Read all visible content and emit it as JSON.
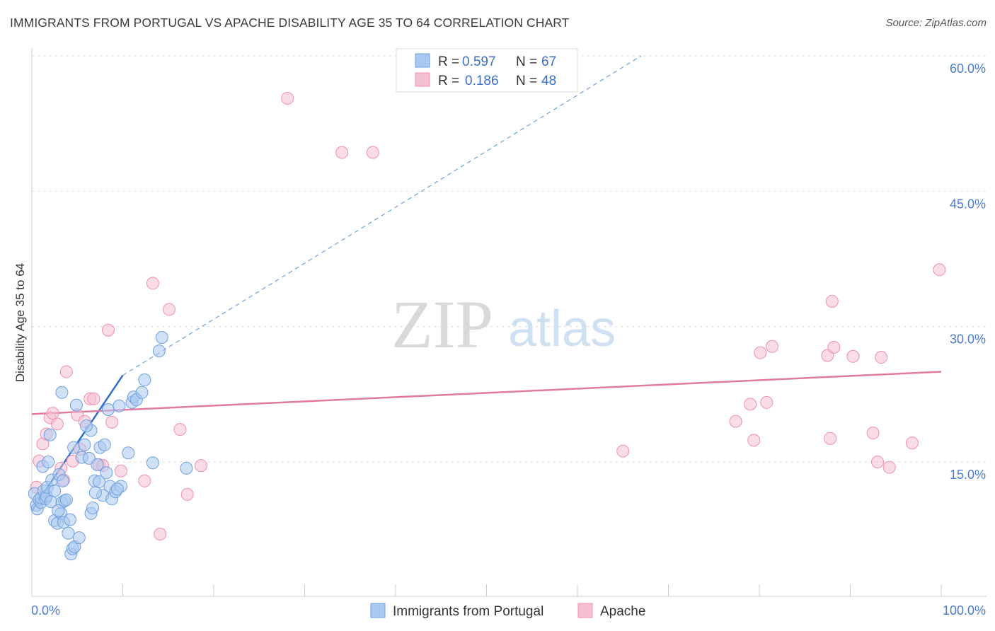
{
  "title": "IMMIGRANTS FROM PORTUGAL VS APACHE DISABILITY AGE 35 TO 64 CORRELATION CHART",
  "source": "Source: ZipAtlas.com",
  "watermark": {
    "zip": "ZIP",
    "atlas": "atlas"
  },
  "colors": {
    "blue_fill": "#a9c8f0",
    "blue_stroke": "#6f9fdc",
    "blue_line": "#2f6fcc",
    "pink_fill": "#f6bfd1",
    "pink_stroke": "#ec90b0",
    "pink_line": "#e07aa0",
    "grid": "#dddddd",
    "tick_text": "#4a7bd0"
  },
  "legend": {
    "rows": [
      {
        "r_label": "R =",
        "r_value": "0.597",
        "n_label": "N =",
        "n_value": "67"
      },
      {
        "r_label": "R =",
        "r_value": "0.186",
        "n_label": "N =",
        "n_value": "48"
      }
    ]
  },
  "chart_data": {
    "type": "scatter",
    "title": "IMMIGRANTS FROM PORTUGAL VS APACHE DISABILITY AGE 35 TO 64 CORRELATION CHART",
    "xlabel": "",
    "ylabel": "Disability Age 35 to 64",
    "xlim": [
      0,
      100
    ],
    "ylim": [
      0,
      63
    ],
    "x_tick_labels": [
      "0.0%",
      "100.0%"
    ],
    "y_ticks": [
      15,
      30,
      45,
      60
    ],
    "y_tick_labels": [
      "15.0%",
      "30.0%",
      "45.0%",
      "60.0%"
    ],
    "grid": true,
    "legend_position": "top-center",
    "series": [
      {
        "name": "Immigrants from Portugal",
        "color": "#a9c8f0",
        "trend": {
          "x0": 0,
          "y0": 9.6,
          "x1": 10,
          "y1": 24.6,
          "dashed_to_x": 67,
          "dashed_to_y": 60
        },
        "points": [
          [
            0.3,
            11.5
          ],
          [
            0.5,
            10.2
          ],
          [
            0.6,
            9.8
          ],
          [
            0.8,
            10.8
          ],
          [
            1.0,
            10.5
          ],
          [
            1.0,
            11.0
          ],
          [
            1.2,
            14.5
          ],
          [
            1.3,
            11.8
          ],
          [
            1.5,
            10.9
          ],
          [
            1.6,
            11.2
          ],
          [
            1.7,
            12.2
          ],
          [
            1.8,
            15.0
          ],
          [
            2.0,
            18.0
          ],
          [
            2.1,
            10.6
          ],
          [
            2.2,
            13.0
          ],
          [
            2.5,
            11.8
          ],
          [
            2.5,
            8.5
          ],
          [
            2.8,
            8.2
          ],
          [
            3.0,
            13.6
          ],
          [
            3.2,
            9.3
          ],
          [
            3.3,
            10.5
          ],
          [
            3.4,
            12.9
          ],
          [
            3.5,
            8.3
          ],
          [
            3.6,
            10.7
          ],
          [
            3.8,
            10.8
          ],
          [
            4.0,
            7.1
          ],
          [
            3.3,
            22.7
          ],
          [
            4.3,
            4.8
          ],
          [
            4.5,
            5.4
          ],
          [
            4.6,
            16.6
          ],
          [
            4.7,
            5.6
          ],
          [
            4.9,
            21.3
          ],
          [
            5.2,
            6.6
          ],
          [
            5.5,
            15.5
          ],
          [
            6.3,
            15.4
          ],
          [
            6.5,
            18.5
          ],
          [
            6.5,
            9.3
          ],
          [
            6.7,
            9.9
          ],
          [
            6.9,
            12.9
          ],
          [
            7.2,
            14.7
          ],
          [
            7.4,
            12.8
          ],
          [
            7.5,
            16.6
          ],
          [
            7.8,
            11.3
          ],
          [
            8.0,
            16.9
          ],
          [
            8.2,
            13.8
          ],
          [
            8.4,
            20.8
          ],
          [
            8.6,
            12.3
          ],
          [
            8.8,
            10.9
          ],
          [
            9.2,
            11.7
          ],
          [
            9.6,
            21.2
          ],
          [
            9.8,
            12.3
          ],
          [
            10.6,
            16.0
          ],
          [
            11.0,
            21.6
          ],
          [
            11.2,
            22.2
          ],
          [
            11.5,
            21.9
          ],
          [
            12.1,
            22.7
          ],
          [
            12.4,
            24.1
          ],
          [
            13.3,
            14.9
          ],
          [
            14.0,
            27.3
          ],
          [
            14.3,
            28.8
          ],
          [
            17.0,
            14.3
          ],
          [
            6.0,
            19.0
          ],
          [
            4.2,
            8.6
          ],
          [
            2.9,
            9.6
          ],
          [
            7.0,
            11.6
          ],
          [
            9.4,
            12.0
          ],
          [
            5.8,
            16.9
          ]
        ]
      },
      {
        "name": "Apache",
        "color": "#f6bfd1",
        "trend": {
          "x0": 0,
          "y0": 20.3,
          "x1": 100,
          "y1": 25.0
        },
        "points": [
          [
            0.5,
            12.2
          ],
          [
            0.8,
            15.1
          ],
          [
            1.2,
            17.0
          ],
          [
            1.6,
            18.1
          ],
          [
            2.0,
            19.9
          ],
          [
            2.3,
            20.4
          ],
          [
            2.8,
            19.2
          ],
          [
            3.2,
            14.3
          ],
          [
            3.5,
            13.0
          ],
          [
            3.8,
            25.0
          ],
          [
            4.5,
            15.1
          ],
          [
            5.0,
            20.2
          ],
          [
            5.3,
            16.4
          ],
          [
            5.8,
            19.5
          ],
          [
            6.4,
            22.0
          ],
          [
            6.8,
            22.0
          ],
          [
            7.4,
            14.7
          ],
          [
            7.8,
            14.6
          ],
          [
            8.4,
            29.6
          ],
          [
            8.8,
            19.4
          ],
          [
            9.8,
            14.0
          ],
          [
            12.4,
            12.9
          ],
          [
            13.3,
            34.8
          ],
          [
            14.1,
            7.0
          ],
          [
            15.1,
            31.9
          ],
          [
            16.3,
            18.6
          ],
          [
            17.1,
            11.4
          ],
          [
            18.6,
            14.6
          ],
          [
            28.1,
            55.3
          ],
          [
            34.1,
            49.3
          ],
          [
            37.5,
            49.3
          ],
          [
            65.0,
            16.2
          ],
          [
            77.4,
            19.5
          ],
          [
            79.0,
            21.4
          ],
          [
            79.4,
            17.4
          ],
          [
            80.1,
            27.1
          ],
          [
            80.8,
            21.6
          ],
          [
            81.4,
            27.8
          ],
          [
            87.8,
            17.6
          ],
          [
            87.5,
            26.8
          ],
          [
            88.2,
            27.7
          ],
          [
            88.0,
            32.8
          ],
          [
            90.3,
            26.7
          ],
          [
            92.5,
            18.2
          ],
          [
            93.0,
            15.0
          ],
          [
            93.4,
            26.6
          ],
          [
            94.3,
            14.4
          ],
          [
            96.8,
            17.1
          ]
        ],
        "extra_points": [
          [
            99.8,
            36.3
          ]
        ]
      }
    ]
  }
}
